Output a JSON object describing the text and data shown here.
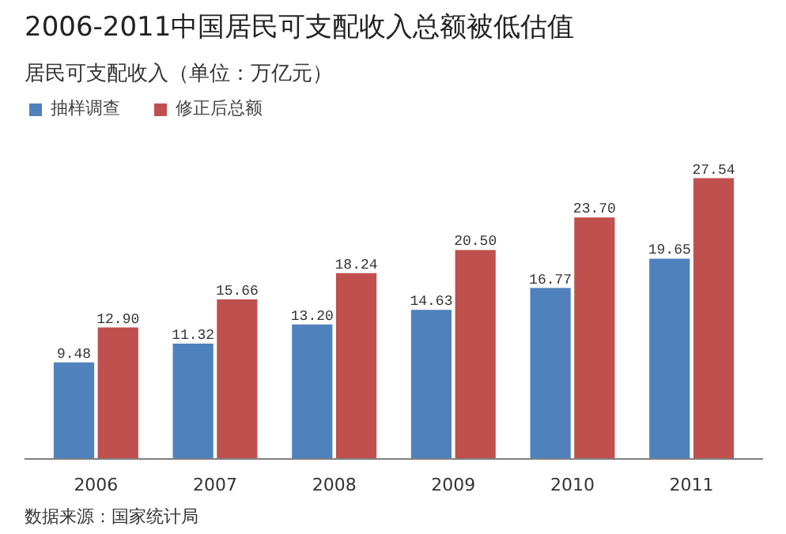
{
  "chart_data": {
    "type": "bar",
    "title": "2006-2011中国居民可支配收入总额被低估值",
    "subtitle": "居民可支配收入（单位：万亿元）",
    "categories": [
      "2006",
      "2007",
      "2008",
      "2009",
      "2010",
      "2011"
    ],
    "series": [
      {
        "name": "抽样调查",
        "color": "#4f81bd",
        "values": [
          9.48,
          11.32,
          13.2,
          14.63,
          16.77,
          19.65
        ],
        "value_labels": [
          "9.48",
          "11.32",
          "13.20",
          "14.63",
          "16.77",
          "19.65"
        ]
      },
      {
        "name": "修正后总额",
        "color": "#c0504d",
        "values": [
          12.9,
          15.66,
          18.24,
          20.5,
          23.7,
          27.54
        ],
        "value_labels": [
          "12.90",
          "15.66",
          "18.24",
          "20.50",
          "23.70",
          "27.54"
        ]
      }
    ],
    "legend": "top left",
    "grid": false,
    "annotations": [
      "数据来源：国家统计局"
    ]
  }
}
